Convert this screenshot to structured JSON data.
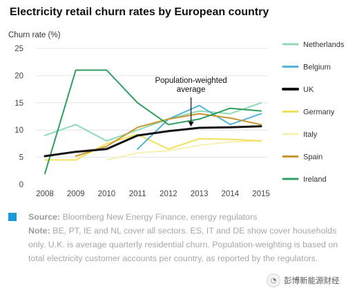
{
  "chart_data": {
    "type": "line",
    "title": "Electricity retail churn rates by European country",
    "ylabel": "Churn rate (%)",
    "xlabel": "",
    "x": [
      2008,
      2009,
      2010,
      2011,
      2012,
      2013,
      2014,
      2015
    ],
    "x_ticks": [
      "2008",
      "2009",
      "2010",
      "2011",
      "2012",
      "2013",
      "2014",
      "2015"
    ],
    "y_ticks": [
      "0",
      "5",
      "10",
      "15",
      "20",
      "25"
    ],
    "ylim": [
      0,
      25
    ],
    "grid": "horizontal",
    "legend_position": "right",
    "series": [
      {
        "name": "Netherlands",
        "color": "#8fd9b6",
        "width": 2,
        "points": [
          [
            2008,
            9
          ],
          [
            2009,
            11
          ],
          [
            2010,
            8
          ],
          [
            2011,
            10
          ],
          [
            2012,
            12
          ],
          [
            2013,
            13.5
          ],
          [
            2014,
            13
          ],
          [
            2015,
            15
          ]
        ]
      },
      {
        "name": "Belgium",
        "color": "#4db3d7",
        "width": 2,
        "points": [
          [
            2011,
            6.5
          ],
          [
            2012,
            12
          ],
          [
            2013,
            14.5
          ],
          [
            2014,
            11
          ],
          [
            2015,
            13
          ]
        ]
      },
      {
        "name": "UK",
        "color": "#111111",
        "width": 3,
        "points": [
          [
            2008,
            5.2
          ],
          [
            2009,
            6
          ],
          [
            2010,
            6.5
          ],
          [
            2011,
            9
          ],
          [
            2012,
            9.8
          ],
          [
            2013,
            10.4
          ],
          [
            2014,
            10.5
          ],
          [
            2015,
            10.7
          ]
        ]
      },
      {
        "name": "Germany",
        "color": "#f2e05a",
        "width": 2,
        "points": [
          [
            2008,
            4.5
          ],
          [
            2009,
            4.5
          ],
          [
            2010,
            7.5
          ],
          [
            2011,
            9.2
          ],
          [
            2012,
            6.5
          ],
          [
            2013,
            8.4
          ],
          [
            2014,
            8.3
          ],
          [
            2015,
            8
          ]
        ]
      },
      {
        "name": "Italy",
        "color": "#f7f0b3",
        "width": 2,
        "points": [
          [
            2010,
            4.5
          ],
          [
            2011,
            5.8
          ],
          [
            2012,
            6.2
          ],
          [
            2013,
            7.2
          ],
          [
            2014,
            7.8
          ],
          [
            2015,
            8
          ]
        ]
      },
      {
        "name": "Spain",
        "color": "#c8962e",
        "width": 2,
        "points": [
          [
            2009,
            5.2
          ],
          [
            2010,
            7
          ],
          [
            2011,
            10.5
          ],
          [
            2012,
            12
          ],
          [
            2013,
            13
          ],
          [
            2014,
            12.2
          ],
          [
            2015,
            11
          ]
        ]
      },
      {
        "name": "Ireland",
        "color": "#2e9e5e",
        "width": 2,
        "points": [
          [
            2008,
            2
          ],
          [
            2009,
            21
          ],
          [
            2010,
            21
          ],
          [
            2011,
            15
          ],
          [
            2012,
            11
          ],
          [
            2013,
            12
          ],
          [
            2014,
            14
          ],
          [
            2015,
            13.5
          ]
        ]
      }
    ],
    "annotations": [
      {
        "text_lines": [
          "Population-weighted",
          "average"
        ],
        "points_to": [
          2013,
          10.4
        ]
      }
    ]
  },
  "footer": {
    "source_label": "Source:",
    "source_text": " Bloomberg New Energy Finance, energy regulators",
    "note_label": "Note:",
    "note_text": " BE, PT, IE and NL cover all sectors. ES, IT and DE show cover households only. U.K. is average quarterly residential churn. Population-weighting is based on total electricity customer accounts per country, as reported by the regulators."
  },
  "watermark": {
    "text": "彭博新能源财经",
    "icon": "wechat-account-icon"
  }
}
